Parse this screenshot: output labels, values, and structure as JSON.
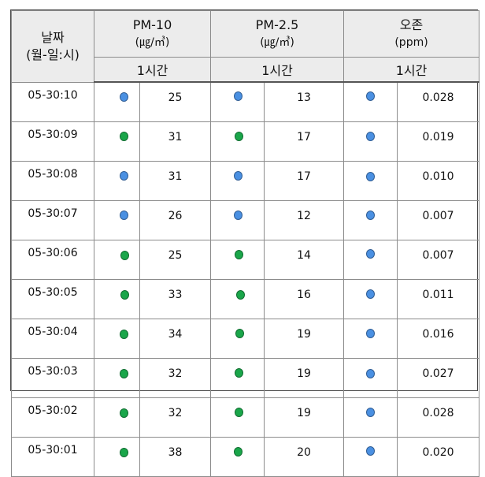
{
  "headers": {
    "date_line1": "날짜",
    "date_line2": "(월-일:시)",
    "pm10_title": "PM-10",
    "pm10_unit": "(㎍/㎥)",
    "pm25_title": "PM-2.5",
    "pm25_unit": "(㎍/㎥)",
    "ozone_title": "오존",
    "ozone_unit": "(ppm)",
    "period_pm10": "1시간",
    "period_pm25": "1시간",
    "period_ozone": "1시간"
  },
  "colors": {
    "good": "#4a90e2",
    "normal": "#1aa64a"
  },
  "rows": [
    {
      "date": "05-30:10",
      "pm10_status": "good",
      "pm10": "25",
      "pm25_status": "good",
      "pm25": "13",
      "ozone_status": "good",
      "ozone": "0.028"
    },
    {
      "date": "05-30:09",
      "pm10_status": "normal",
      "pm10": "31",
      "pm25_status": "normal",
      "pm25": "17",
      "ozone_status": "good",
      "ozone": "0.019"
    },
    {
      "date": "05-30:08",
      "pm10_status": "good",
      "pm10": "31",
      "pm25_status": "good",
      "pm25": "17",
      "ozone_status": "good",
      "ozone": "0.010"
    },
    {
      "date": "05-30:07",
      "pm10_status": "good",
      "pm10": "26",
      "pm25_status": "good",
      "pm25": "12",
      "ozone_status": "good",
      "ozone": "0.007"
    },
    {
      "date": "05-30:06",
      "pm10_status": "normal",
      "pm10": "25",
      "pm25_status": "normal",
      "pm25": "14",
      "ozone_status": "good",
      "ozone": "0.007"
    },
    {
      "date": "05-30:05",
      "pm10_status": "normal",
      "pm10": "33",
      "pm25_status": "normal",
      "pm25": "16",
      "ozone_status": "good",
      "ozone": "0.011"
    },
    {
      "date": "05-30:04",
      "pm10_status": "normal",
      "pm10": "34",
      "pm25_status": "normal",
      "pm25": "19",
      "ozone_status": "good",
      "ozone": "0.016"
    },
    {
      "date": "05-30:03",
      "pm10_status": "normal",
      "pm10": "32",
      "pm25_status": "normal",
      "pm25": "19",
      "ozone_status": "good",
      "ozone": "0.027"
    },
    {
      "date": "05-30:02",
      "pm10_status": "normal",
      "pm10": "32",
      "pm25_status": "normal",
      "pm25": "19",
      "ozone_status": "good",
      "ozone": "0.028"
    },
    {
      "date": "05-30:01",
      "pm10_status": "normal",
      "pm10": "38",
      "pm25_status": "normal",
      "pm25": "20",
      "ozone_status": "good",
      "ozone": "0.020"
    }
  ]
}
